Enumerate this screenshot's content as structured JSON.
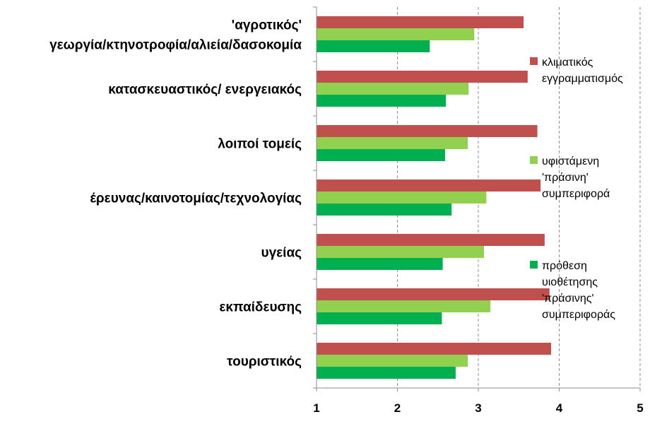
{
  "chart_data": {
    "type": "bar",
    "orientation": "horizontal",
    "categories": [
      [
        "'αγροτικός'",
        "γεωργία/κτηνοτροφία/αλιεία/δασοκομία"
      ],
      [
        "κατασκευαστικός/ ενεργειακός"
      ],
      [
        "λοιποί τομείς"
      ],
      [
        "έρευνας/καινοτομίας/τεχνολογίας"
      ],
      [
        "υγείας"
      ],
      [
        "εκπαίδευσης"
      ],
      [
        "τουριστικός"
      ]
    ],
    "series": [
      {
        "name": "κλιματικός εγγραμματισμός",
        "legend_lines": [
          "κλιματικός",
          "εγγραμματισμός"
        ],
        "color": "#C0504D",
        "values": [
          3.56,
          3.61,
          3.73,
          3.77,
          3.82,
          3.88,
          3.9
        ]
      },
      {
        "name": "υφιστάμενη 'πράσινη' συμπεριφορά",
        "legend_lines": [
          "υφιστάμενη",
          "'πράσινη'",
          "συμπεριφορά"
        ],
        "color": "#92D050",
        "values": [
          2.95,
          2.88,
          2.87,
          3.1,
          3.07,
          3.15,
          2.87
        ]
      },
      {
        "name": "πρόθεση υιοθέτησης 'πράσινης' συμπεριφοράς",
        "legend_lines": [
          "πρόθεση",
          "υιοθέτησης",
          "'πράσινης'",
          "συμπεριφοράς"
        ],
        "color": "#00B050",
        "values": [
          2.4,
          2.6,
          2.59,
          2.67,
          2.56,
          2.55,
          2.72
        ]
      }
    ],
    "xlim": [
      1,
      5
    ],
    "ticks": [
      "1",
      "2",
      "3",
      "4",
      "5"
    ],
    "grid": true,
    "legend": "right",
    "title": "",
    "xlabel": "",
    "ylabel": ""
  }
}
